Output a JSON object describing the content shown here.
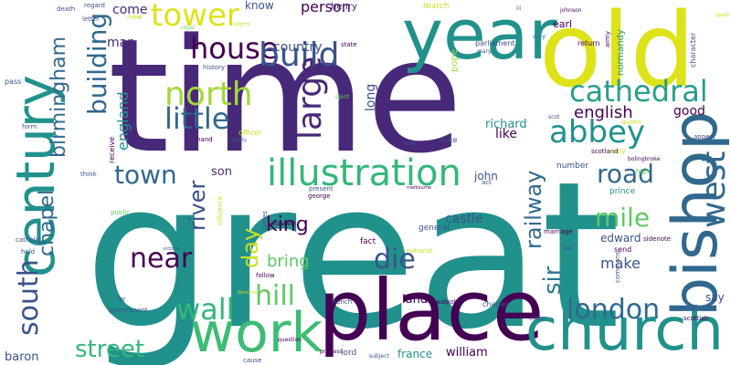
{
  "palette": {
    "dark_purple": "#440154",
    "indigo": "#46327e",
    "blue": "#365c8d",
    "steel": "#277f8e",
    "teal": "#1fa187",
    "green": "#4ac16d",
    "lime": "#a0da39",
    "yellow": "#dde318"
  },
  "words": [
    {
      "text": "great",
      "color": "#21918c"
    },
    {
      "text": "time",
      "color": "#482878"
    },
    {
      "text": "old",
      "color": "#dde318"
    },
    {
      "text": "place",
      "color": "#440154"
    },
    {
      "text": "church",
      "color": "#21918c"
    },
    {
      "text": "year",
      "color": "#21918c"
    },
    {
      "text": "work",
      "color": "#3dbc74"
    },
    {
      "text": "bishop",
      "color": "#31688e"
    },
    {
      "text": "century",
      "color": "#21918c"
    },
    {
      "text": "illustration",
      "color": "#35b779"
    },
    {
      "text": "cathedral",
      "color": "#2a9d8f"
    },
    {
      "text": "north",
      "color": "#a0da39"
    },
    {
      "text": "little",
      "color": "#31688e"
    },
    {
      "text": "house",
      "color": "#440154"
    },
    {
      "text": "tower",
      "color": "#dde318"
    },
    {
      "text": "abbey",
      "color": "#21918c"
    },
    {
      "text": "building",
      "color": "#31688e"
    },
    {
      "text": "build",
      "color": "#3b528b"
    },
    {
      "text": "large",
      "color": "#482878"
    },
    {
      "text": "west",
      "color": "#31688e"
    },
    {
      "text": "london",
      "color": "#31688e"
    },
    {
      "text": "wall",
      "color": "#35b779"
    },
    {
      "text": "hill",
      "color": "#5ec962"
    },
    {
      "text": "south",
      "color": "#3b528b"
    },
    {
      "text": "road",
      "color": "#31688e"
    },
    {
      "text": "street",
      "color": "#35b779"
    },
    {
      "text": "town",
      "color": "#31688e"
    },
    {
      "text": "mile",
      "color": "#5ec962"
    },
    {
      "text": "die",
      "color": "#3b528b"
    },
    {
      "text": "near",
      "color": "#440154"
    },
    {
      "text": "english",
      "color": "#440154"
    },
    {
      "text": "birmingham",
      "color": "#31688e"
    },
    {
      "text": "chapel",
      "color": "#31688e"
    },
    {
      "text": "railway",
      "color": "#31688e"
    },
    {
      "text": "river",
      "color": "#3b528b"
    },
    {
      "text": "day",
      "color": "#c8e020"
    },
    {
      "text": "sir",
      "color": "#2a788e"
    },
    {
      "text": "england",
      "color": "#21918c"
    },
    {
      "text": "king",
      "color": "#440154"
    },
    {
      "text": "country",
      "color": "#3b528b"
    },
    {
      "text": "person",
      "color": "#440154"
    },
    {
      "text": "come",
      "color": "#482878"
    },
    {
      "text": "man",
      "color": "#482878"
    },
    {
      "text": "know",
      "color": "#3b528b"
    },
    {
      "text": "good",
      "color": "#440154"
    },
    {
      "text": "make",
      "color": "#3b528b"
    },
    {
      "text": "bring",
      "color": "#5ec962"
    },
    {
      "text": "castle",
      "color": "#3b528b"
    },
    {
      "text": "edward",
      "color": "#3b528b"
    },
    {
      "text": "son",
      "color": "#482878"
    },
    {
      "text": "like",
      "color": "#440154"
    },
    {
      "text": "richard",
      "color": "#21918c"
    },
    {
      "text": "long",
      "color": "#3b528b"
    },
    {
      "text": "say",
      "color": "#3b528b"
    },
    {
      "text": "land",
      "color": "#440154"
    },
    {
      "text": "baron",
      "color": "#3b528b"
    },
    {
      "text": "william",
      "color": "#440154"
    },
    {
      "text": "france",
      "color": "#21918c"
    },
    {
      "text": "john",
      "color": "#3b528b"
    },
    {
      "text": "henry",
      "color": "#482878"
    },
    {
      "text": "march",
      "color": "#c8e020"
    },
    {
      "text": "pope",
      "color": "#a0da39"
    },
    {
      "text": "normandy",
      "color": "#21918c"
    },
    {
      "text": "earl",
      "color": "#440154"
    },
    {
      "text": "general",
      "color": "#3b528b"
    },
    {
      "text": "parliament",
      "color": "#3b528b"
    },
    {
      "text": "life",
      "color": "#21918c"
    },
    {
      "text": "lord",
      "color": "#3b528b"
    },
    {
      "text": "number",
      "color": "#3b528b"
    },
    {
      "text": "fact",
      "color": "#440154"
    },
    {
      "text": "letter",
      "color": "#3b528b"
    },
    {
      "text": "regard",
      "color": "#3b528b"
    },
    {
      "text": "death",
      "color": "#3b528b"
    },
    {
      "text": "new",
      "color": "#c8e020"
    },
    {
      "text": "royal",
      "color": "#5ec962"
    },
    {
      "text": "pilgrim",
      "color": "#c8e020"
    },
    {
      "text": "iii",
      "color": "#3b528b"
    },
    {
      "text": "johnson",
      "color": "#440154"
    },
    {
      "text": "way",
      "color": "#2a788e"
    },
    {
      "text": "army",
      "color": "#440154"
    },
    {
      "text": "character",
      "color": "#3b528b"
    },
    {
      "text": "spain",
      "color": "#c8e020"
    },
    {
      "text": "state",
      "color": "#440154"
    },
    {
      "text": "mary",
      "color": "#3b528b"
    },
    {
      "text": "return",
      "color": "#440154"
    },
    {
      "text": "history",
      "color": "#3b528b"
    },
    {
      "text": "spirit",
      "color": "#5ec962"
    },
    {
      "text": "scot",
      "color": "#3b528b"
    },
    {
      "text": "queen",
      "color": "#c8e020"
    },
    {
      "text": "appear",
      "color": "#3b528b"
    },
    {
      "text": "pass",
      "color": "#3b528b"
    },
    {
      "text": "form",
      "color": "#3b528b"
    },
    {
      "text": "receive",
      "color": "#440154"
    },
    {
      "text": "hand",
      "color": "#440154"
    },
    {
      "text": "majesty",
      "color": "#3b528b"
    },
    {
      "text": "officer",
      "color": "#c8e020"
    },
    {
      "text": "visit",
      "color": "#3b528b"
    },
    {
      "text": "duke",
      "color": "#3b528b"
    },
    {
      "text": "scotland",
      "color": "#440154"
    },
    {
      "text": "early",
      "color": "#c8e020"
    },
    {
      "text": "think",
      "color": "#3b528b"
    },
    {
      "text": "bolingbroke",
      "color": "#440154"
    },
    {
      "text": "high",
      "color": "#5ec962"
    },
    {
      "text": "prince",
      "color": "#21918c"
    },
    {
      "text": "present",
      "color": "#3b528b"
    },
    {
      "text": "george",
      "color": "#440154"
    },
    {
      "text": "melbourne",
      "color": "#440154"
    },
    {
      "text": "act",
      "color": "#3b528b"
    },
    {
      "text": "public",
      "color": "#5ec962"
    },
    {
      "text": "influence",
      "color": "#c8e020"
    },
    {
      "text": "james",
      "color": "#3b528b"
    },
    {
      "text": "elizabeth",
      "color": "#440154"
    },
    {
      "text": "victoria",
      "color": "#3b528b"
    },
    {
      "text": "marriage",
      "color": "#440154"
    },
    {
      "text": "sidenote",
      "color": "#440154"
    },
    {
      "text": "law",
      "color": "#3b528b"
    },
    {
      "text": "send",
      "color": "#440154"
    },
    {
      "text": "catholic",
      "color": "#3b528b"
    },
    {
      "text": "hold",
      "color": "#3b528b"
    },
    {
      "text": "follow",
      "color": "#440154"
    },
    {
      "text": "national",
      "color": "#c8e020"
    },
    {
      "text": "commons",
      "color": "#3b528b"
    },
    {
      "text": "far",
      "color": "#3b528b"
    },
    {
      "text": "government",
      "color": "#3b528b"
    },
    {
      "text": "dominion",
      "color": "#c8e020"
    },
    {
      "text": "french",
      "color": "#3b528b"
    },
    {
      "text": "walpole",
      "color": "#440154"
    },
    {
      "text": "charles",
      "color": "#3b528b"
    },
    {
      "text": "class",
      "color": "#3b528b"
    },
    {
      "text": "scottish",
      "color": "#440154"
    },
    {
      "text": "question",
      "color": "#440154"
    },
    {
      "text": "princess",
      "color": "#440154"
    },
    {
      "text": "cause",
      "color": "#3b528b"
    },
    {
      "text": "subject",
      "color": "#3b528b"
    }
  ]
}
